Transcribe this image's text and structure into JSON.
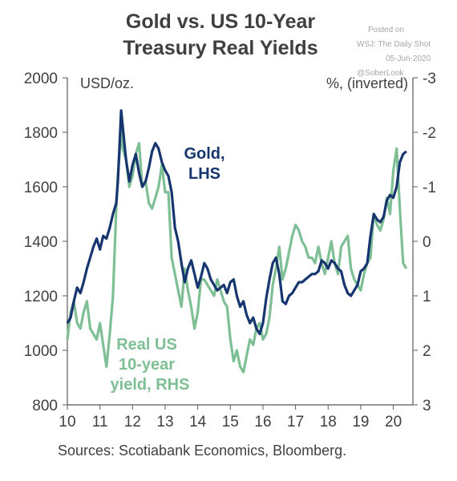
{
  "title_line1": "Gold vs. US 10-Year",
  "title_line2": "Treasury Real Yields",
  "posted": {
    "line1": "Posted on",
    "line2": "WSJ: The Daily Shot",
    "line3": "05-Jun-2020",
    "line4": "@SoberLook"
  },
  "source": "Sources: Scotiabank Economics, Bloomberg.",
  "colors": {
    "gold": "#17356e",
    "yield": "#7fbf95",
    "text": "#404040",
    "axis": "#595959"
  },
  "chart_data": {
    "type": "line",
    "x_ticks": [
      "10",
      "11",
      "12",
      "13",
      "14",
      "15",
      "16",
      "17",
      "18",
      "19",
      "20"
    ],
    "xlim": [
      10,
      20.6
    ],
    "left_axis": {
      "label": "USD/oz.",
      "ylim": [
        800,
        2000
      ],
      "ticks": [
        "800",
        "1000",
        "1200",
        "1400",
        "1600",
        "1800",
        "2000"
      ]
    },
    "right_axis": {
      "label": "%, (inverted)",
      "ylim": [
        3,
        -3
      ],
      "inverted": true,
      "ticks": [
        "3",
        "2",
        "1",
        "0",
        "-1",
        "-2",
        "-3"
      ]
    },
    "series": [
      {
        "name": "Gold, LHS",
        "axis": "left",
        "label_lines": [
          "Gold,",
          "LHS"
        ],
        "x": [
          10.0,
          10.1,
          10.2,
          10.3,
          10.4,
          10.5,
          10.6,
          10.7,
          10.8,
          10.9,
          11.0,
          11.1,
          11.2,
          11.3,
          11.4,
          11.5,
          11.55,
          11.6,
          11.65,
          11.7,
          11.8,
          11.9,
          12.0,
          12.1,
          12.2,
          12.3,
          12.4,
          12.5,
          12.6,
          12.7,
          12.8,
          12.9,
          13.0,
          13.1,
          13.2,
          13.3,
          13.4,
          13.5,
          13.6,
          13.7,
          13.8,
          13.9,
          14.0,
          14.1,
          14.2,
          14.3,
          14.4,
          14.5,
          14.6,
          14.7,
          14.8,
          14.9,
          15.0,
          15.1,
          15.2,
          15.3,
          15.4,
          15.5,
          15.6,
          15.7,
          15.8,
          15.9,
          16.0,
          16.1,
          16.2,
          16.3,
          16.4,
          16.5,
          16.6,
          16.7,
          16.8,
          16.9,
          17.0,
          17.1,
          17.2,
          17.3,
          17.4,
          17.5,
          17.6,
          17.7,
          17.8,
          17.9,
          18.0,
          18.1,
          18.2,
          18.3,
          18.4,
          18.5,
          18.6,
          18.7,
          18.8,
          18.9,
          19.0,
          19.1,
          19.2,
          19.3,
          19.4,
          19.5,
          19.6,
          19.7,
          19.8,
          19.9,
          20.0,
          20.1,
          20.2,
          20.3,
          20.4
        ],
        "values": [
          1100,
          1120,
          1180,
          1230,
          1210,
          1250,
          1300,
          1340,
          1380,
          1410,
          1370,
          1420,
          1410,
          1450,
          1500,
          1540,
          1620,
          1750,
          1880,
          1820,
          1700,
          1620,
          1680,
          1720,
          1650,
          1600,
          1620,
          1670,
          1730,
          1760,
          1740,
          1690,
          1660,
          1640,
          1580,
          1450,
          1400,
          1320,
          1250,
          1300,
          1330,
          1280,
          1230,
          1270,
          1320,
          1300,
          1260,
          1240,
          1220,
          1230,
          1240,
          1210,
          1250,
          1260,
          1200,
          1160,
          1180,
          1130,
          1100,
          1120,
          1080,
          1060,
          1100,
          1190,
          1260,
          1320,
          1340,
          1280,
          1180,
          1170,
          1200,
          1210,
          1230,
          1250,
          1250,
          1260,
          1270,
          1280,
          1280,
          1290,
          1330,
          1320,
          1300,
          1330,
          1320,
          1300,
          1290,
          1240,
          1210,
          1200,
          1220,
          1240,
          1290,
          1300,
          1320,
          1420,
          1500,
          1480,
          1470,
          1490,
          1550,
          1570,
          1560,
          1600,
          1690,
          1720,
          1730
        ]
      },
      {
        "name": "Real US 10-year yield, RHS",
        "axis": "right",
        "label_lines": [
          "Real US",
          "10-year",
          "yield, RHS"
        ],
        "x": [
          10.0,
          10.1,
          10.2,
          10.3,
          10.4,
          10.5,
          10.6,
          10.7,
          10.8,
          10.9,
          11.0,
          11.1,
          11.2,
          11.3,
          11.4,
          11.5,
          11.55,
          11.6,
          11.65,
          11.7,
          11.8,
          11.9,
          12.0,
          12.1,
          12.2,
          12.3,
          12.4,
          12.5,
          12.6,
          12.7,
          12.8,
          12.9,
          13.0,
          13.1,
          13.2,
          13.3,
          13.4,
          13.5,
          13.6,
          13.7,
          13.8,
          13.9,
          14.0,
          14.1,
          14.2,
          14.3,
          14.4,
          14.5,
          14.6,
          14.7,
          14.8,
          14.9,
          15.0,
          15.1,
          15.2,
          15.3,
          15.4,
          15.5,
          15.6,
          15.7,
          15.8,
          15.9,
          16.0,
          16.1,
          16.2,
          16.3,
          16.4,
          16.5,
          16.6,
          16.7,
          16.8,
          16.9,
          17.0,
          17.1,
          17.2,
          17.3,
          17.4,
          17.5,
          17.6,
          17.7,
          17.8,
          17.9,
          18.0,
          18.1,
          18.2,
          18.3,
          18.4,
          18.5,
          18.6,
          18.7,
          18.8,
          18.9,
          19.0,
          19.1,
          19.2,
          19.3,
          19.4,
          19.5,
          19.6,
          19.7,
          19.8,
          19.9,
          20.0,
          20.1,
          20.2,
          20.3,
          20.4
        ],
        "values": [
          1.8,
          1.3,
          1.1,
          1.5,
          1.6,
          1.3,
          1.1,
          1.6,
          1.7,
          1.8,
          1.5,
          1.9,
          2.3,
          1.7,
          1.0,
          -0.6,
          -1.2,
          -1.6,
          -2.1,
          -1.7,
          -1.5,
          -1.0,
          -1.2,
          -1.6,
          -1.8,
          -1.0,
          -1.1,
          -0.7,
          -0.6,
          -0.8,
          -1.0,
          -1.4,
          -0.9,
          -0.9,
          0.3,
          0.6,
          0.9,
          1.2,
          0.5,
          0.9,
          1.2,
          1.6,
          1.3,
          0.7,
          0.7,
          0.8,
          0.9,
          1.0,
          0.7,
          0.9,
          1.1,
          1.2,
          1.8,
          2.2,
          2.0,
          2.3,
          2.4,
          2.1,
          1.8,
          1.9,
          1.6,
          1.5,
          1.8,
          1.7,
          1.4,
          0.8,
          0.5,
          0.1,
          0.7,
          0.5,
          0.2,
          -0.1,
          -0.3,
          -0.2,
          0.0,
          0.1,
          0.3,
          0.3,
          0.4,
          0.1,
          0.4,
          0.6,
          0.3,
          0.0,
          0.4,
          0.6,
          0.1,
          0.0,
          -0.1,
          0.5,
          0.7,
          0.8,
          0.9,
          0.6,
          0.4,
          0.3,
          -0.5,
          -0.3,
          -0.2,
          -0.4,
          -0.8,
          -0.5,
          -1.3,
          -1.7,
          -0.6,
          0.4,
          0.5
        ]
      }
    ],
    "grid": false,
    "legend": "inline-labels"
  }
}
